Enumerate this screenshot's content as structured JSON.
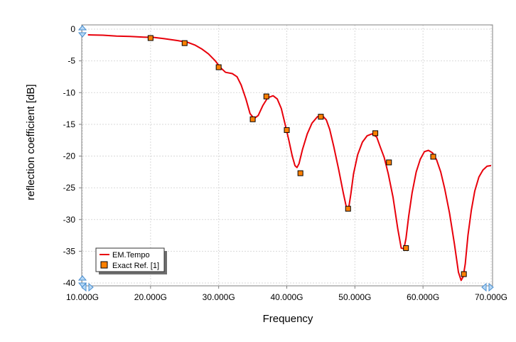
{
  "chart_data": {
    "type": "line",
    "xlabel": "Frequency",
    "ylabel": "reflection coefficient [dB]",
    "xlim": [
      10,
      70
    ],
    "ylim": [
      -40,
      0
    ],
    "x_ticks": [
      {
        "value": 10,
        "label": "10.000G"
      },
      {
        "value": 20,
        "label": "20.000G"
      },
      {
        "value": 30,
        "label": "30.000G"
      },
      {
        "value": 40,
        "label": "40.000G"
      },
      {
        "value": 50,
        "label": "50.000G"
      },
      {
        "value": 60,
        "label": "60.000G"
      },
      {
        "value": 70,
        "label": "70.000G"
      }
    ],
    "y_ticks": [
      {
        "value": 0,
        "label": "0"
      },
      {
        "value": -5,
        "label": "-5"
      },
      {
        "value": -10,
        "label": "-10"
      },
      {
        "value": -15,
        "label": "-15"
      },
      {
        "value": -20,
        "label": "-20"
      },
      {
        "value": -25,
        "label": "-25"
      },
      {
        "value": -30,
        "label": "-30"
      },
      {
        "value": -35,
        "label": "-35"
      },
      {
        "value": -40,
        "label": "-40"
      }
    ],
    "grid": true,
    "legend_position": "bottom-left",
    "series": [
      {
        "name": "EM.Tempo",
        "type": "line",
        "color": "#e8000b",
        "x": [
          10.8,
          13,
          15,
          17,
          19,
          20.5,
          22,
          24,
          25.5,
          26.5,
          27.5,
          28.5,
          29.5,
          30.3,
          31,
          32,
          32.7,
          33.3,
          34,
          34.6,
          35.2,
          35.8,
          36.5,
          37.2,
          38,
          38.6,
          39.2,
          39.8,
          40.3,
          40.8,
          41.2,
          41.5,
          41.8,
          42.3,
          43,
          43.7,
          44.5,
          45.2,
          45.8,
          46.3,
          46.9,
          47.6,
          48.3,
          48.8,
          49.1,
          49.4,
          49.8,
          50.4,
          51.1,
          51.8,
          52.5,
          53.2,
          53.7,
          54.3,
          54.9,
          55.6,
          56.3,
          56.8,
          57.2,
          57.5,
          57.9,
          58.4,
          59,
          59.6,
          60.2,
          60.8,
          61.4,
          62,
          62.6,
          63.2,
          63.9,
          64.6,
          65.2,
          65.6,
          65.9,
          66.2,
          66.6,
          67.1,
          67.6,
          68.2,
          68.8,
          69.4,
          70
        ],
        "values": [
          -0.9,
          -0.95,
          -1.1,
          -1.15,
          -1.25,
          -1.3,
          -1.5,
          -1.8,
          -2.1,
          -2.5,
          -3.1,
          -3.9,
          -5.0,
          -6.1,
          -6.8,
          -7.0,
          -7.5,
          -8.8,
          -11.0,
          -13.3,
          -14.1,
          -13.6,
          -12.0,
          -10.8,
          -10.5,
          -11.0,
          -12.5,
          -15.2,
          -17.5,
          -20.0,
          -21.5,
          -21.8,
          -21.2,
          -19.0,
          -16.5,
          -14.8,
          -13.8,
          -13.6,
          -14.3,
          -15.8,
          -18.5,
          -22.0,
          -25.8,
          -28.3,
          -28.1,
          -26.0,
          -22.8,
          -19.8,
          -17.8,
          -16.8,
          -16.5,
          -17.0,
          -18.5,
          -20.2,
          -22.8,
          -26.5,
          -31.5,
          -34.5,
          -34.6,
          -33.0,
          -29.5,
          -25.8,
          -22.5,
          -20.5,
          -19.3,
          -19.1,
          -19.5,
          -20.6,
          -22.5,
          -25.2,
          -29.0,
          -33.8,
          -38.3,
          -39.6,
          -39.0,
          -37.0,
          -32.5,
          -28.5,
          -25.5,
          -23.3,
          -22.2,
          -21.6,
          -21.5
        ]
      },
      {
        "name": "Exact Ref. [1]",
        "type": "scatter",
        "color": "#ff8000",
        "x": [
          20,
          25,
          30,
          35,
          37,
          40,
          42,
          45,
          49,
          53,
          55,
          57.5,
          61.5,
          66
        ],
        "values": [
          -1.4,
          -2.2,
          -6.0,
          -14.2,
          -10.6,
          -15.9,
          -22.7,
          -13.8,
          -28.3,
          -16.4,
          -21.0,
          -34.5,
          -20.1,
          -38.6
        ]
      }
    ]
  }
}
